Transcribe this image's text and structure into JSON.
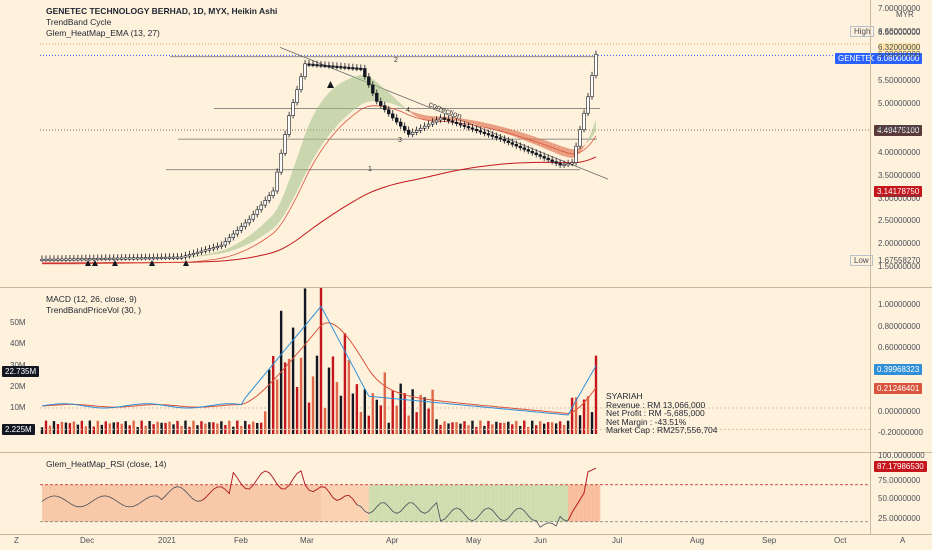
{
  "main_pane": {
    "title": "GENETEC TECHNOLOGY BERHAD, 1D, MYX, Heikin Ashi",
    "indicator_1": "TrendBand Cycle",
    "indicator_2": "Glem_HeatMap_EMA (13, 27)",
    "currency": "MYR",
    "high_label": "High",
    "high_value": "6.66000000",
    "low_label": "Low",
    "low_value": "1.67558270",
    "price_level_1": "6.32000000",
    "ticker_tag": "GENETEC",
    "last_price": "6.08000000",
    "tag_price_2": "4.49475100",
    "tag_price_3": "3.14178750",
    "annotations": [
      "2",
      "4",
      "3",
      "1",
      "correction"
    ],
    "y_axis": [
      "7.00000000",
      "6.50000000",
      "6.00000000",
      "5.50000000",
      "5.00000000",
      "4.50000000",
      "4.00000000",
      "3.50000000",
      "3.00000000",
      "2.50000000",
      "2.00000000",
      "1.50000000"
    ]
  },
  "macd_pane": {
    "indicator_1": "MACD (12, 26, close, 9)",
    "indicator_2": "TrendBandPriceVol (30, )",
    "vol_axis": [
      "50M",
      "40M",
      "30M",
      "20M",
      "10M"
    ],
    "vol_tag_high": "22.735M",
    "vol_tag_low": "2.225M",
    "y_axis": [
      "1.00000000",
      "0.80000000",
      "0.60000000",
      "0.40000000",
      "0.20000000",
      "0.00000000",
      "-0.20000000"
    ],
    "macd_tag": "0.39968323",
    "signal_tag": "0.21246401",
    "info": {
      "line1": "SYARIAH",
      "line2": "Revenue : RM 13,066,000",
      "line3": "Net Profit : RM -5,685,000",
      "line4": "Net Margin : -43.51%",
      "line5": "Market Cap : RM257,556,704"
    }
  },
  "rsi_pane": {
    "indicator": "Glem_HeatMap_RSI (close, 14)",
    "y_axis": [
      "100.0000000",
      "75.0000000",
      "50.0000000",
      "25.0000000"
    ],
    "rsi_tag": "87.17986530"
  },
  "time_axis": {
    "left_button": "Z",
    "right_button": "A",
    "labels": [
      "Dec",
      "2021",
      "Feb",
      "Mar",
      "Apr",
      "May",
      "Jun",
      "Jul",
      "Aug",
      "Sep",
      "Oct"
    ]
  },
  "colors": {
    "background": "#fff2dc",
    "up_candle": "#131722",
    "ema_green": "#7fa66a",
    "ema_red": "#d9543c",
    "macd_line": "#2f8fd8",
    "signal_line": "#d9543c",
    "ticker_blue": "#2962ff",
    "dark_red": "#c4161c"
  }
}
